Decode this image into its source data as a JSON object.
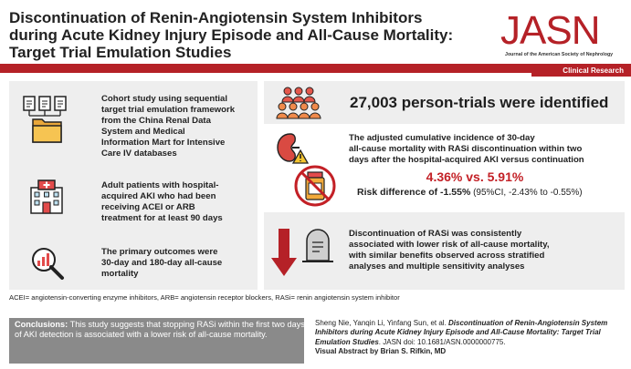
{
  "header": {
    "title_line1": "Discontinuation of Renin-Angiotensin System Inhibitors",
    "title_line2": "during Acute Kidney Injury Episode and All-Cause Mortality:",
    "title_line3": "Target Trial Emulation Studies",
    "logo": "JASN",
    "logo_subtitle": "Journal of the American Society of Nephrology",
    "section_tag": "Clinical Research"
  },
  "left": {
    "item1": [
      "Cohort study using sequential",
      "target trial emulation framework",
      "from the China Renal Data",
      "System and Medical",
      "Information Mart for Intensive",
      "Care IV databases"
    ],
    "item2": [
      "Adult patients with hospital-",
      "acquired AKI who had been",
      "receiving ACEI or ARB",
      "treatment for at least 90 days"
    ],
    "item3": [
      "The primary outcomes were",
      "30-day and 180-day all-cause",
      "mortality"
    ],
    "icons": [
      "documents-folder-icon",
      "hospital-icon",
      "magnifier-chart-icon"
    ]
  },
  "right": {
    "count_text": "27,003 person-trials were identified",
    "result_lines": [
      "The adjusted cumulative incidence of 30-day",
      "all-cause mortality with RASi discontinuation within two",
      "days after the hospital-acquired AKI versus continuation"
    ],
    "rates": "4.36% vs. 5.91%",
    "risk_label": "Risk difference of ",
    "risk_value": "-1.55%",
    "risk_ci": " (95%CI, -2.43% to -0.55%)",
    "conclusion_lines": [
      "Discontinuation of RASi was consistently",
      "associated with lower risk of all-cause mortality,",
      "with similar benefits observed across stratified",
      "analyses and multiple sensitivity analyses"
    ],
    "icons": [
      "people-group-icon",
      "kidney-warning-icon",
      "no-pills-icon",
      "down-arrow-icon",
      "tombstone-icon"
    ]
  },
  "footer": {
    "abbreviations": "ACEI= angiotensin-converting enzyme inhibitors, ARB=  angiotensin receptor blockers, RASi= renin angiotensin system inhibitor",
    "conclusion_label": "Conclusions:",
    "conclusion_text": " This study suggests that stopping RASi within the first two days of AKI detection is associated with a lower risk of all-cause mortality.",
    "citation_authors": "Sheng Nie, Yanqin Li, Yinfang Sun, et al. ",
    "citation_title": "Discontinuation of Renin-Angiotensin System Inhibitors during Acute Kidney Injury Episode and All-Cause Mortality: Target Trial Emulation Studies",
    "citation_journal": ". JASN doi: 10.1681/ASN.0000000775.",
    "visual_abstract_by": "Visual Abstract by Brian S. Rifkin, MD"
  },
  "colors": {
    "accent_red": "#b52127",
    "panel_gray": "#eeeeee",
    "conclusion_gray": "#8a8a8a"
  }
}
